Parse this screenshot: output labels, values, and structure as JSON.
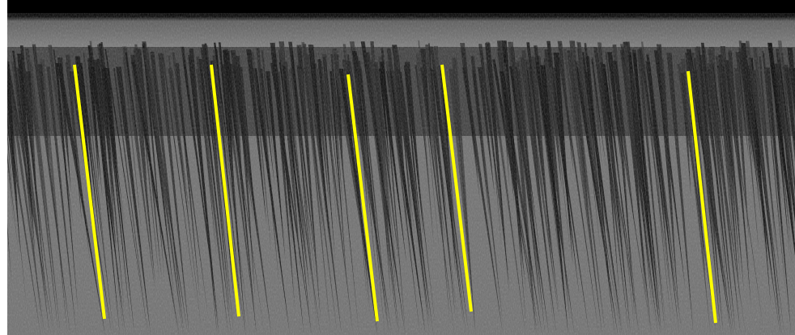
{
  "image": {
    "kind": "grayscale kymograph-like texture with diagonal dark streaks",
    "overlay_color": "#ffff00",
    "overlay_line_count": 5
  }
}
